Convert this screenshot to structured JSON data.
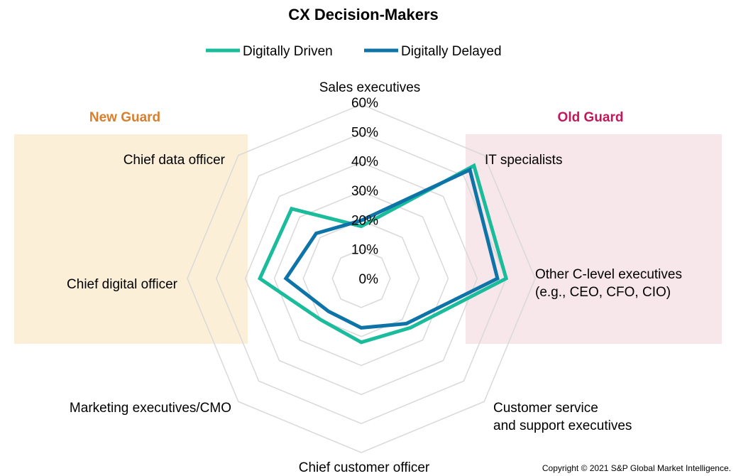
{
  "chart_data": {
    "type": "radar",
    "title": "CX Decision-Makers",
    "axes": [
      "Sales executives",
      "IT specialists",
      "Other C-level executives (e.g., CEO, CFO, CIO)",
      "Customer service and support executives",
      "Chief customer officer",
      "Marketing executives/CMO",
      "Chief digital officer",
      "Chief data officer"
    ],
    "axis_label_lines": [
      [
        "Sales executives"
      ],
      [
        "IT specialists"
      ],
      [
        "Other C-level executives",
        "(e.g., CEO, CFO, CIO)"
      ],
      [
        "Customer service",
        "and support executives"
      ],
      [
        "Chief customer officer"
      ],
      [
        "Marketing executives/CMO"
      ],
      [
        "Chief digital officer"
      ],
      [
        "Chief data officer"
      ]
    ],
    "r_ticks": [
      "0%",
      "10%",
      "20%",
      "30%",
      "40%",
      "50%",
      "60%"
    ],
    "r_range": [
      0,
      60
    ],
    "series": [
      {
        "name": "Digitally Driven",
        "color": "#1ABC9C",
        "values": [
          18,
          55,
          50,
          24,
          22,
          20,
          35,
          34
        ]
      },
      {
        "name": "Digitally Delayed",
        "color": "#0E74A8",
        "values": [
          20,
          53,
          47,
          22,
          17,
          16,
          26,
          22
        ]
      }
    ],
    "legend_position": "top",
    "grid": true,
    "groups": [
      {
        "label": "New Guard",
        "label_color": "#D97E2C",
        "fill": "#FCEFD8",
        "axes": [
          "Chief data officer",
          "Chief digital officer"
        ]
      },
      {
        "label": "Old Guard",
        "label_color": "#C2185B",
        "fill": "#F7E6EA",
        "axes": [
          "IT specialists",
          "Other C-level executives (e.g., CEO, CFO, CIO)"
        ]
      }
    ]
  },
  "copyright": "Copyright © 2021 S&P Global Market Intelligence."
}
